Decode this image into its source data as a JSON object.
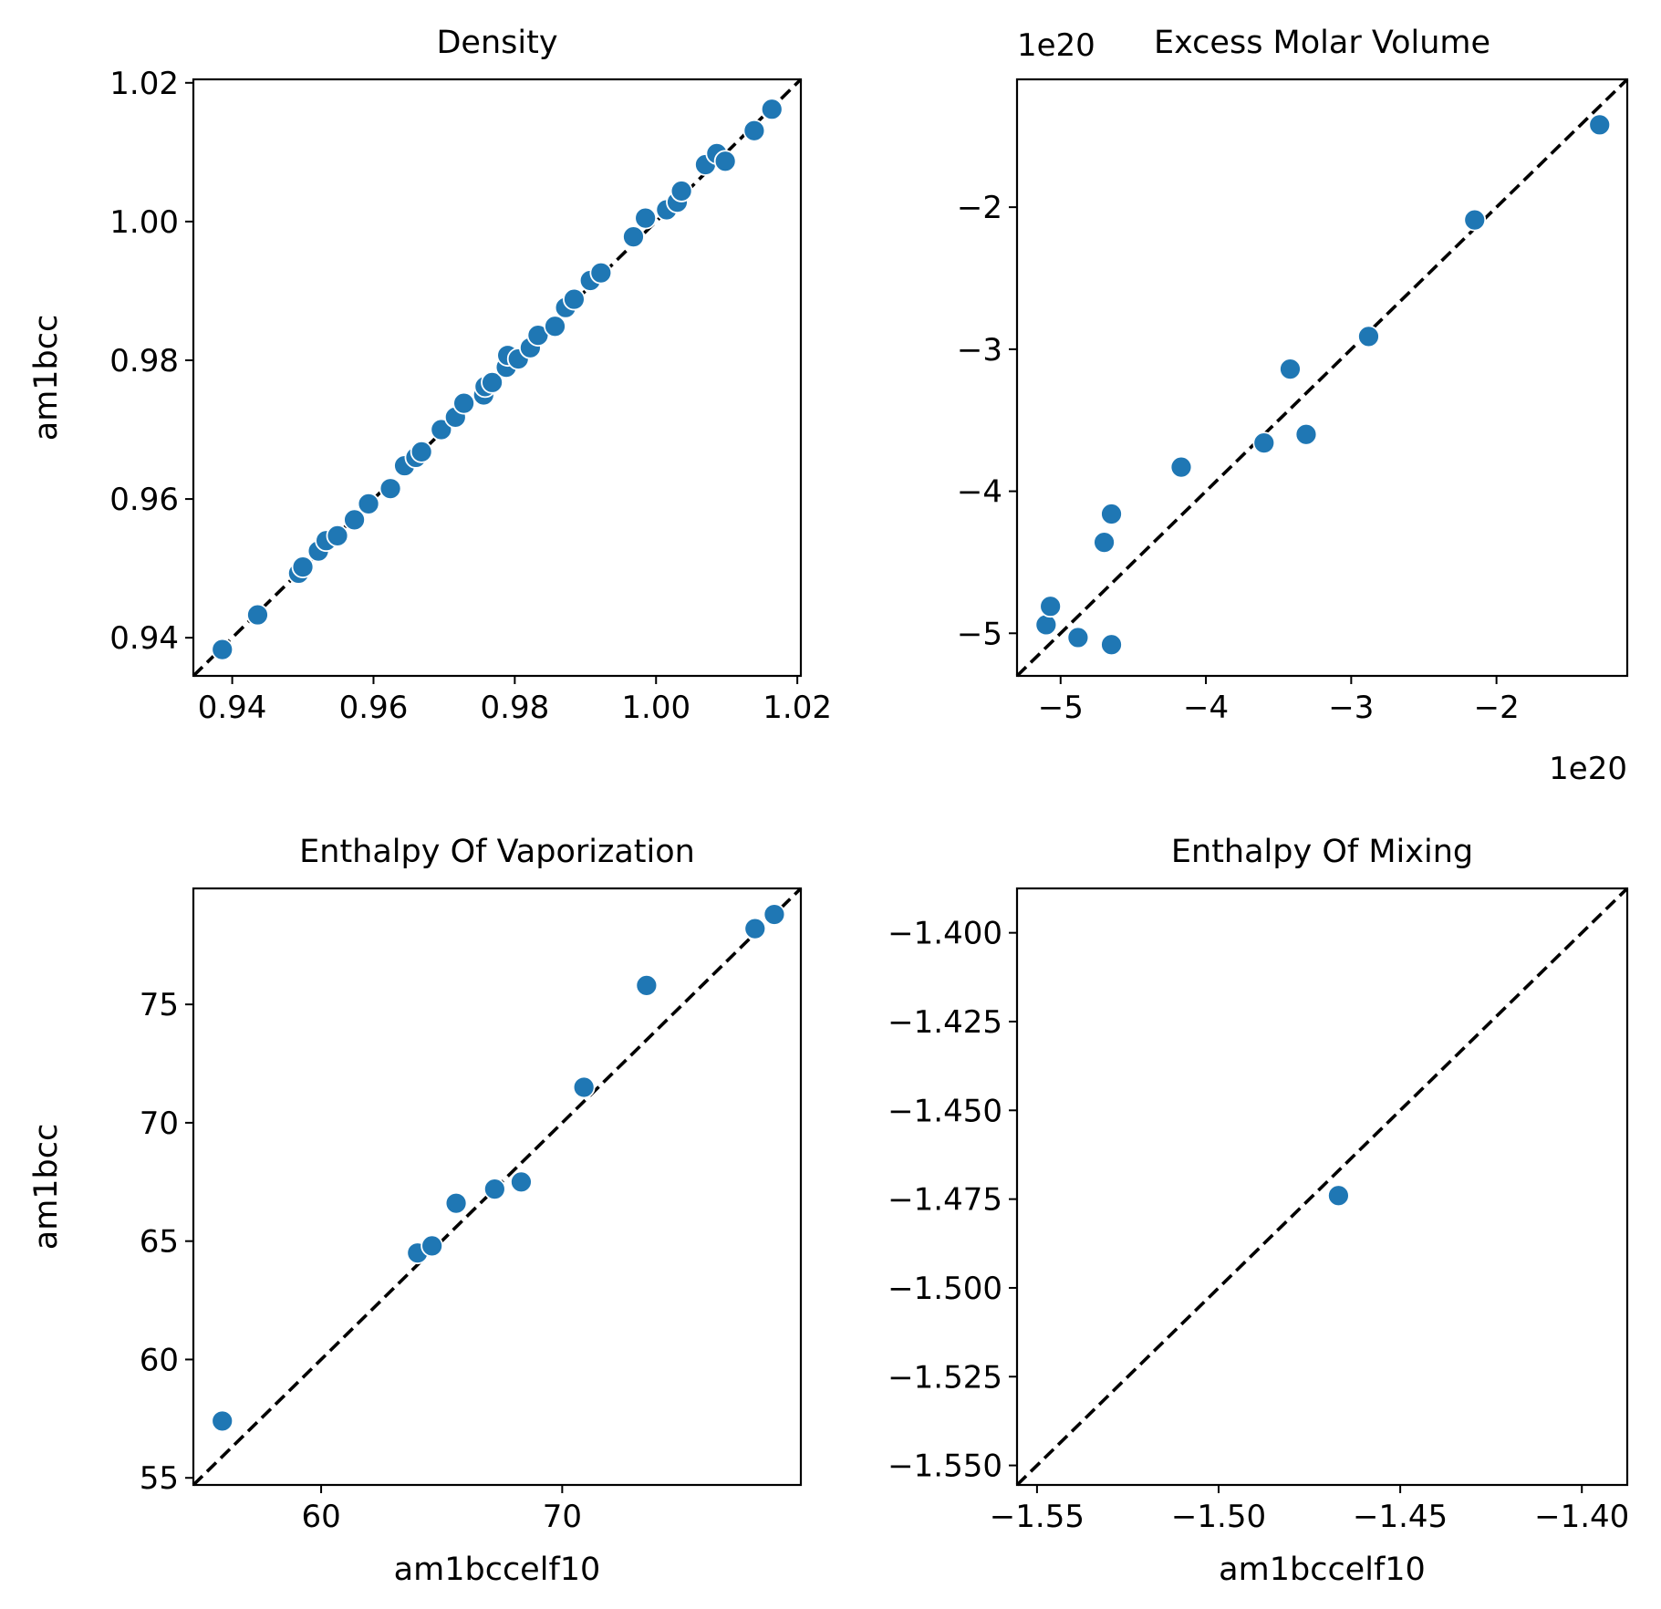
{
  "colors": {
    "marker": "#1f77b4",
    "diagonal": "#000000",
    "frame": "#000000"
  },
  "chart_data": [
    {
      "type": "scatter",
      "title": "Density",
      "xlabel": "",
      "ylabel": "am1bcc",
      "xlim": [
        0.9345,
        1.0205
      ],
      "ylim": [
        0.9345,
        1.0205
      ],
      "xticks": [
        0.94,
        0.96,
        0.98,
        1.0,
        1.02
      ],
      "yticks": [
        0.94,
        0.96,
        0.98,
        1.0,
        1.02
      ],
      "xtick_labels": [
        "0.94",
        "0.96",
        "0.98",
        "1.00",
        "1.02"
      ],
      "ytick_labels": [
        "0.94",
        "0.96",
        "0.98",
        "1.00",
        "1.02"
      ],
      "x_offset_label": "",
      "y_offset_label": "",
      "reference_line": "y = x",
      "points": [
        [
          0.9386,
          0.9383
        ],
        [
          0.9436,
          0.9433
        ],
        [
          0.9494,
          0.9493
        ],
        [
          0.95,
          0.9502
        ],
        [
          0.9522,
          0.9525
        ],
        [
          0.9533,
          0.954
        ],
        [
          0.9549,
          0.9547
        ],
        [
          0.9573,
          0.957
        ],
        [
          0.9593,
          0.9593
        ],
        [
          0.9624,
          0.9615
        ],
        [
          0.9644,
          0.9648
        ],
        [
          0.966,
          0.966
        ],
        [
          0.9668,
          0.9668
        ],
        [
          0.9696,
          0.97
        ],
        [
          0.9716,
          0.9718
        ],
        [
          0.9728,
          0.9738
        ],
        [
          0.9756,
          0.975
        ],
        [
          0.9758,
          0.9762
        ],
        [
          0.9768,
          0.9768
        ],
        [
          0.9788,
          0.979
        ],
        [
          0.979,
          0.9807
        ],
        [
          0.9805,
          0.9802
        ],
        [
          0.9822,
          0.9818
        ],
        [
          0.9833,
          0.9836
        ],
        [
          0.9857,
          0.9849
        ],
        [
          0.9872,
          0.9876
        ],
        [
          0.9884,
          0.9888
        ],
        [
          0.9907,
          0.9915
        ],
        [
          0.9922,
          0.9926
        ],
        [
          0.9968,
          0.9978
        ],
        [
          0.9985,
          1.0005
        ],
        [
          1.0015,
          1.0017
        ],
        [
          1.003,
          1.0028
        ],
        [
          1.0036,
          1.0044
        ],
        [
          1.007,
          1.0082
        ],
        [
          1.0086,
          1.0098
        ],
        [
          1.0098,
          1.0087
        ],
        [
          1.0139,
          1.0131
        ],
        [
          1.0164,
          1.0162
        ]
      ]
    },
    {
      "type": "scatter",
      "title": "Excess Molar Volume",
      "xlabel": "",
      "ylabel": "",
      "xlim": [
        -5.3,
        -1.1
      ],
      "ylim": [
        -5.3,
        -1.1
      ],
      "xticks": [
        -5,
        -4,
        -3,
        -2
      ],
      "yticks": [
        -5,
        -4,
        -3,
        -2
      ],
      "xtick_labels": [
        "−5",
        "−4",
        "−3",
        "−2"
      ],
      "ytick_labels": [
        "−5",
        "−4",
        "−3",
        "−2"
      ],
      "x_offset_label": "1e20",
      "y_offset_label": "1e20",
      "reference_line": "y = x",
      "points": [
        [
          -5.1,
          -4.94
        ],
        [
          -5.07,
          -4.81
        ],
        [
          -4.88,
          -5.03
        ],
        [
          -4.7,
          -4.36
        ],
        [
          -4.65,
          -4.16
        ],
        [
          -4.65,
          -5.08
        ],
        [
          -4.17,
          -3.83
        ],
        [
          -3.6,
          -3.66
        ],
        [
          -3.42,
          -3.14
        ],
        [
          -3.31,
          -3.6
        ],
        [
          -2.88,
          -2.91
        ],
        [
          -2.15,
          -2.09
        ],
        [
          -1.29,
          -1.42
        ]
      ]
    },
    {
      "type": "scatter",
      "title": "Enthalpy Of Vaporization",
      "xlabel": "am1bccelf10",
      "ylabel": "am1bcc",
      "xlim": [
        54.7,
        79.9
      ],
      "ylim": [
        54.7,
        79.9
      ],
      "xticks": [
        60,
        70
      ],
      "yticks": [
        55,
        60,
        65,
        70,
        75
      ],
      "xtick_labels": [
        "60",
        "70"
      ],
      "ytick_labels": [
        "55",
        "60",
        "65",
        "70",
        "75"
      ],
      "x_offset_label": "",
      "y_offset_label": "",
      "reference_line": "y = x",
      "points": [
        [
          55.9,
          57.4
        ],
        [
          64.0,
          64.5
        ],
        [
          64.6,
          64.8
        ],
        [
          65.6,
          66.6
        ],
        [
          67.2,
          67.2
        ],
        [
          68.3,
          67.5
        ],
        [
          70.9,
          71.5
        ],
        [
          73.5,
          75.8
        ],
        [
          78.0,
          78.2
        ],
        [
          78.8,
          78.8
        ]
      ]
    },
    {
      "type": "scatter",
      "title": "Enthalpy Of Mixing",
      "xlabel": "am1bccelf10",
      "ylabel": "",
      "xlim": [
        -1.5555,
        -1.3875
      ],
      "ylim": [
        -1.5555,
        -1.3875
      ],
      "xticks": [
        -1.55,
        -1.5,
        -1.45,
        -1.4
      ],
      "yticks": [
        -1.55,
        -1.525,
        -1.5,
        -1.475,
        -1.45,
        -1.425,
        -1.4
      ],
      "xtick_labels": [
        "−1.55",
        "−1.50",
        "−1.45",
        "−1.40"
      ],
      "ytick_labels": [
        "−1.550",
        "−1.525",
        "−1.500",
        "−1.475",
        "−1.450",
        "−1.425",
        "−1.400"
      ],
      "x_offset_label": "",
      "y_offset_label": "",
      "reference_line": "y = x",
      "points": [
        [
          -1.467,
          -1.474
        ]
      ]
    }
  ]
}
